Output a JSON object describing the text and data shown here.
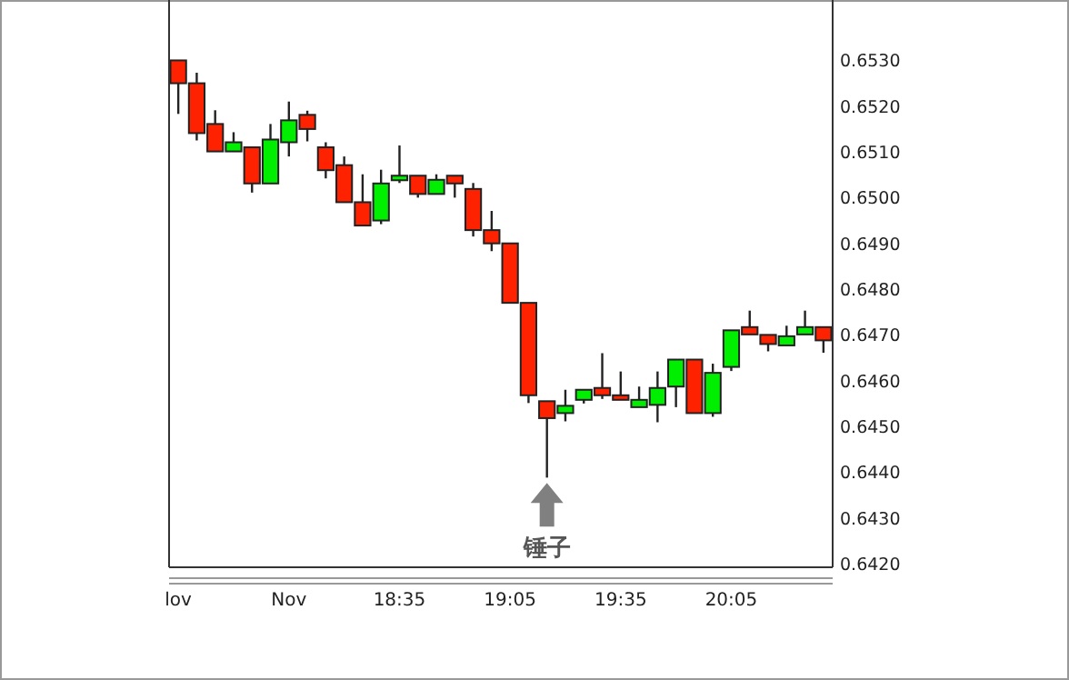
{
  "chart_data": {
    "type": "candlestick",
    "categories": [
      "lov",
      null,
      null,
      null,
      null,
      null,
      "Nov",
      null,
      null,
      null,
      null,
      null,
      "18:35",
      null,
      null,
      null,
      null,
      null,
      "19:05",
      null,
      null,
      null,
      null,
      null,
      "19:35",
      null,
      null,
      null,
      null,
      null,
      "20:05",
      null,
      null,
      null,
      null,
      null
    ],
    "ohlc": [
      [
        0.653,
        0.653,
        0.65183,
        0.6525
      ],
      [
        0.6525,
        0.65273,
        0.65125,
        0.65141
      ],
      [
        0.65161,
        0.65191,
        0.65101,
        0.65101
      ],
      [
        0.65101,
        0.65143,
        0.65101,
        0.65121
      ],
      [
        0.6511,
        0.6511,
        0.65011,
        0.65031
      ],
      [
        0.65031,
        0.65161,
        0.65031,
        0.65127
      ],
      [
        0.65121,
        0.6521,
        0.6509,
        0.65169
      ],
      [
        0.65181,
        0.6519,
        0.65123,
        0.6515
      ],
      [
        0.6511,
        0.65121,
        0.65042,
        0.6506
      ],
      [
        0.65071,
        0.6509,
        0.6499,
        0.6499
      ],
      [
        0.6499,
        0.65051,
        0.64939,
        0.64939
      ],
      [
        0.6495,
        0.65061,
        0.64942,
        0.65031
      ],
      [
        0.65038,
        0.65114,
        0.65032,
        0.65048
      ],
      [
        0.65048,
        0.65048,
        0.65,
        0.65008
      ],
      [
        0.65008,
        0.65051,
        0.65008,
        0.65039
      ],
      [
        0.65048,
        0.65048,
        0.65,
        0.65031
      ],
      [
        0.65019,
        0.65032,
        0.64915,
        0.64929
      ],
      [
        0.64929,
        0.64971,
        0.64883,
        0.649
      ],
      [
        0.649,
        0.649,
        0.6477,
        0.6477
      ],
      [
        0.6477,
        0.6477,
        0.64551,
        0.64568
      ],
      [
        0.64555,
        0.64555,
        0.64388,
        0.64518
      ],
      [
        0.64529,
        0.6458,
        0.64511,
        0.64545
      ],
      [
        0.64558,
        0.6458,
        0.6455,
        0.6458
      ],
      [
        0.64584,
        0.6466,
        0.6456,
        0.64568
      ],
      [
        0.64568,
        0.6462,
        0.64558,
        0.64558
      ],
      [
        0.64542,
        0.64587,
        0.64542,
        0.64558
      ],
      [
        0.64547,
        0.6462,
        0.64509,
        0.64584
      ],
      [
        0.64587,
        0.64646,
        0.64542,
        0.64646
      ],
      [
        0.64646,
        0.64646,
        0.64529,
        0.64529
      ],
      [
        0.64529,
        0.64637,
        0.64521,
        0.64617
      ],
      [
        0.6463,
        0.6471,
        0.64621,
        0.6471
      ],
      [
        0.64717,
        0.64753,
        0.64701,
        0.64701
      ],
      [
        0.647,
        0.647,
        0.64664,
        0.6468
      ],
      [
        0.64677,
        0.6472,
        0.64677,
        0.64697
      ],
      [
        0.64701,
        0.64753,
        0.64701,
        0.64717
      ],
      [
        0.64717,
        0.64717,
        0.64661,
        0.64688
      ]
    ],
    "ylim": [
      0.64192,
      0.65432
    ],
    "yticks": [
      {
        "value": 0.653,
        "label": "0.6530"
      },
      {
        "value": 0.652,
        "label": "0.6520"
      },
      {
        "value": 0.651,
        "label": "0.6510"
      },
      {
        "value": 0.65,
        "label": "0.6500"
      },
      {
        "value": 0.649,
        "label": "0.6490"
      },
      {
        "value": 0.648,
        "label": "0.6480"
      },
      {
        "value": 0.647,
        "label": "0.6470"
      },
      {
        "value": 0.646,
        "label": "0.6460"
      },
      {
        "value": 0.645,
        "label": "0.6450"
      },
      {
        "value": 0.644,
        "label": "0.6440"
      },
      {
        "value": 0.643,
        "label": "0.6430"
      },
      {
        "value": 0.642,
        "label": "0.6420"
      }
    ],
    "grid": false,
    "annotations": [
      {
        "text": "锤子",
        "y": 0.64388
      }
    ]
  }
}
